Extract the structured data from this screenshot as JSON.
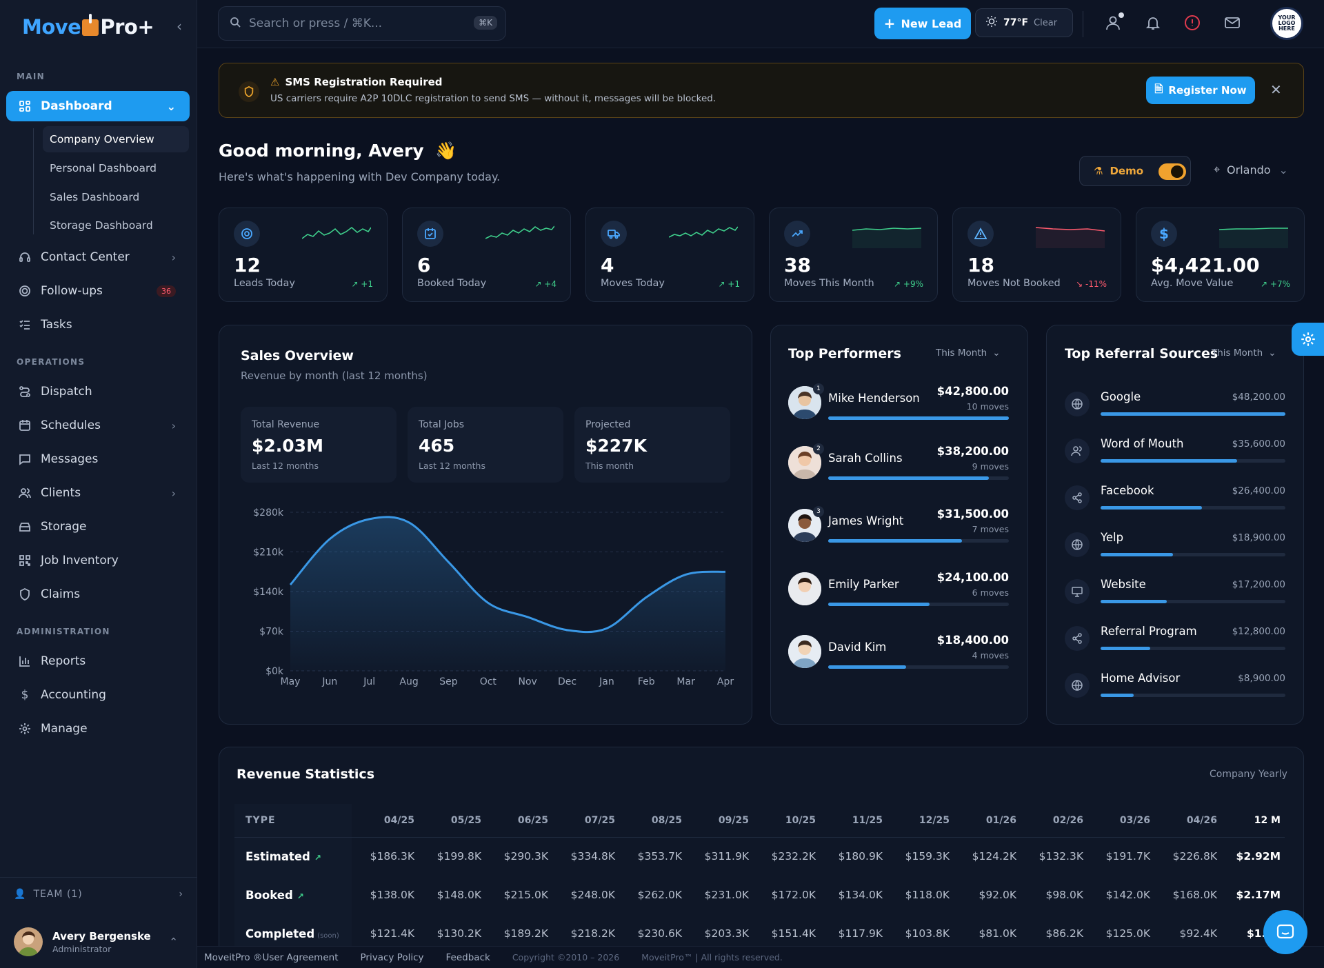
{
  "brand": {
    "logo_left": "Move",
    "logo_right": "Pro+"
  },
  "sidebar": {
    "section_main": "MAIN",
    "section_operations": "OPERATIONS",
    "section_administration": "ADMINISTRATION",
    "dashboard": "Dashboard",
    "sub_items": [
      "Company Overview",
      "Personal Dashboard",
      "Sales Dashboard",
      "Storage Dashboard"
    ],
    "contact_center": "Contact Center",
    "follow_ups": "Follow-ups",
    "follow_ups_badge": "36",
    "tasks": "Tasks",
    "dispatch": "Dispatch",
    "schedules": "Schedules",
    "messages": "Messages",
    "clients": "Clients",
    "storage": "Storage",
    "job_inventory": "Job Inventory",
    "claims": "Claims",
    "reports": "Reports",
    "accounting": "Accounting",
    "manage": "Manage",
    "team": "TEAM (1)",
    "user_name": "Avery Bergenske",
    "user_role": "Administrator"
  },
  "topbar": {
    "search_placeholder": "Search or press / ⌘K...",
    "search_kbd": "⌘K",
    "new_lead": "New Lead",
    "weather_temp": "77°F",
    "weather_cond": "Clear",
    "company_logo": "YOUR LOGO HERE"
  },
  "banner": {
    "title": "SMS Registration Required",
    "text": "US carriers require A2P 10DLC registration to send SMS — without it, messages will be blocked.",
    "button": "Register Now"
  },
  "greeting": {
    "title": "Good morning, Avery",
    "emoji": "👋",
    "subtitle": "Here's what's happening with Dev Company today.",
    "demo_label": "Demo",
    "location": "Orlando"
  },
  "stats": [
    {
      "value": "12",
      "label": "Leads Today",
      "delta": "↗ +1",
      "dir": "up",
      "icon": "target-icon",
      "color": "#3fd08c"
    },
    {
      "value": "6",
      "label": "Booked Today",
      "delta": "↗ +4",
      "dir": "up",
      "icon": "calendar-check-icon",
      "color": "#3fd08c"
    },
    {
      "value": "4",
      "label": "Moves Today",
      "delta": "↗ +1",
      "dir": "up",
      "icon": "truck-icon",
      "color": "#3fd08c"
    },
    {
      "value": "38",
      "label": "Moves This Month",
      "delta": "↗ +9%",
      "dir": "up",
      "icon": "trending-up-icon",
      "color": "#3fd08c"
    },
    {
      "value": "18",
      "label": "Moves Not Booked",
      "delta": "↘ -11%",
      "dir": "down",
      "icon": "alert-triangle-icon",
      "color": "#ff5b6e"
    },
    {
      "value": "$4,421.00",
      "label": "Avg. Move Value",
      "delta": "↗ +7%",
      "dir": "up",
      "icon": "dollar-icon",
      "color": "#3fd08c"
    }
  ],
  "sales": {
    "title": "Sales Overview",
    "subtitle": "Revenue by month (last 12 months)",
    "cards": [
      {
        "label": "Total Revenue",
        "value": "$2.03M",
        "sub": "Last 12 months"
      },
      {
        "label": "Total Jobs",
        "value": "465",
        "sub": "Last 12 months"
      },
      {
        "label": "Projected",
        "value": "$227K",
        "sub": "This month"
      }
    ]
  },
  "chart_data": {
    "type": "area",
    "categories": [
      "May",
      "Jun",
      "Jul",
      "Aug",
      "Sep",
      "Oct",
      "Nov",
      "Dec",
      "Jan",
      "Feb",
      "Mar",
      "Apr"
    ],
    "values": [
      152,
      233,
      268,
      262,
      192,
      120,
      95,
      72,
      75,
      130,
      170,
      175
    ],
    "ylim": [
      0,
      280
    ],
    "yticks": [
      "$0k",
      "$70k",
      "$140k",
      "$210k",
      "$280k"
    ],
    "grid": true,
    "color": "#3a98e6"
  },
  "performers": {
    "title": "Top Performers",
    "period": "This Month",
    "rows": [
      {
        "rank": "1",
        "name": "Mike Henderson",
        "amount": "$42,800.00",
        "moves": "10 moves",
        "share": 1.0
      },
      {
        "rank": "2",
        "name": "Sarah Collins",
        "amount": "$38,200.00",
        "moves": "9 moves",
        "share": 0.89
      },
      {
        "rank": "3",
        "name": "James Wright",
        "amount": "$31,500.00",
        "moves": "7 moves",
        "share": 0.74
      },
      {
        "rank": "",
        "name": "Emily Parker",
        "amount": "$24,100.00",
        "moves": "6 moves",
        "share": 0.56
      },
      {
        "rank": "",
        "name": "David Kim",
        "amount": "$18,400.00",
        "moves": "4 moves",
        "share": 0.43
      }
    ]
  },
  "referrals": {
    "title": "Top Referral Sources",
    "period": "This Month",
    "rows": [
      {
        "name": "Google",
        "amount": "$48,200.00",
        "share": 1.0,
        "icon": "globe-icon"
      },
      {
        "name": "Word of Mouth",
        "amount": "$35,600.00",
        "share": 0.74,
        "icon": "users-icon"
      },
      {
        "name": "Facebook",
        "amount": "$26,400.00",
        "share": 0.55,
        "icon": "share-icon"
      },
      {
        "name": "Yelp",
        "amount": "$18,900.00",
        "share": 0.39,
        "icon": "globe-icon"
      },
      {
        "name": "Website",
        "amount": "$17,200.00",
        "share": 0.36,
        "icon": "monitor-icon"
      },
      {
        "name": "Referral Program",
        "amount": "$12,800.00",
        "share": 0.27,
        "icon": "share-icon"
      },
      {
        "name": "Home Advisor",
        "amount": "$8,900.00",
        "share": 0.18,
        "icon": "globe-icon"
      }
    ]
  },
  "revenue": {
    "title": "Revenue Statistics",
    "scope": "Company Yearly",
    "type_header": "TYPE",
    "months": [
      "04/25",
      "05/25",
      "06/25",
      "07/25",
      "08/25",
      "09/25",
      "10/25",
      "11/25",
      "12/25",
      "01/26",
      "02/26",
      "03/26",
      "04/26"
    ],
    "total_header": "12 M",
    "rows": [
      {
        "type": "Estimated",
        "trend": "↗",
        "note": "",
        "values": [
          "$186.3K",
          "$199.8K",
          "$290.3K",
          "$334.8K",
          "$353.7K",
          "$311.9K",
          "$232.2K",
          "$180.9K",
          "$159.3K",
          "$124.2K",
          "$132.3K",
          "$191.7K",
          "$226.8K"
        ],
        "total": "$2.92M"
      },
      {
        "type": "Booked",
        "trend": "↗",
        "note": "",
        "values": [
          "$138.0K",
          "$148.0K",
          "$215.0K",
          "$248.0K",
          "$262.0K",
          "$231.0K",
          "$172.0K",
          "$134.0K",
          "$118.0K",
          "$92.0K",
          "$98.0K",
          "$142.0K",
          "$168.0K"
        ],
        "total": "$2.17M"
      },
      {
        "type": "Completed",
        "trend": "",
        "note": "(soon)",
        "values": [
          "$121.4K",
          "$130.2K",
          "$189.2K",
          "$218.2K",
          "$230.6K",
          "$203.3K",
          "$151.4K",
          "$117.9K",
          "$103.8K",
          "$81.0K",
          "$86.2K",
          "$125.0K",
          "$92.4K"
        ],
        "total": "$1.85"
      }
    ]
  },
  "footer": {
    "agreement": "MoveitPro ®User Agreement",
    "privacy": "Privacy Policy",
    "feedback": "Feedback",
    "copyright": "Copyright ©2010 – 2026",
    "rights": "MoveitPro™ | All rights reserved."
  }
}
